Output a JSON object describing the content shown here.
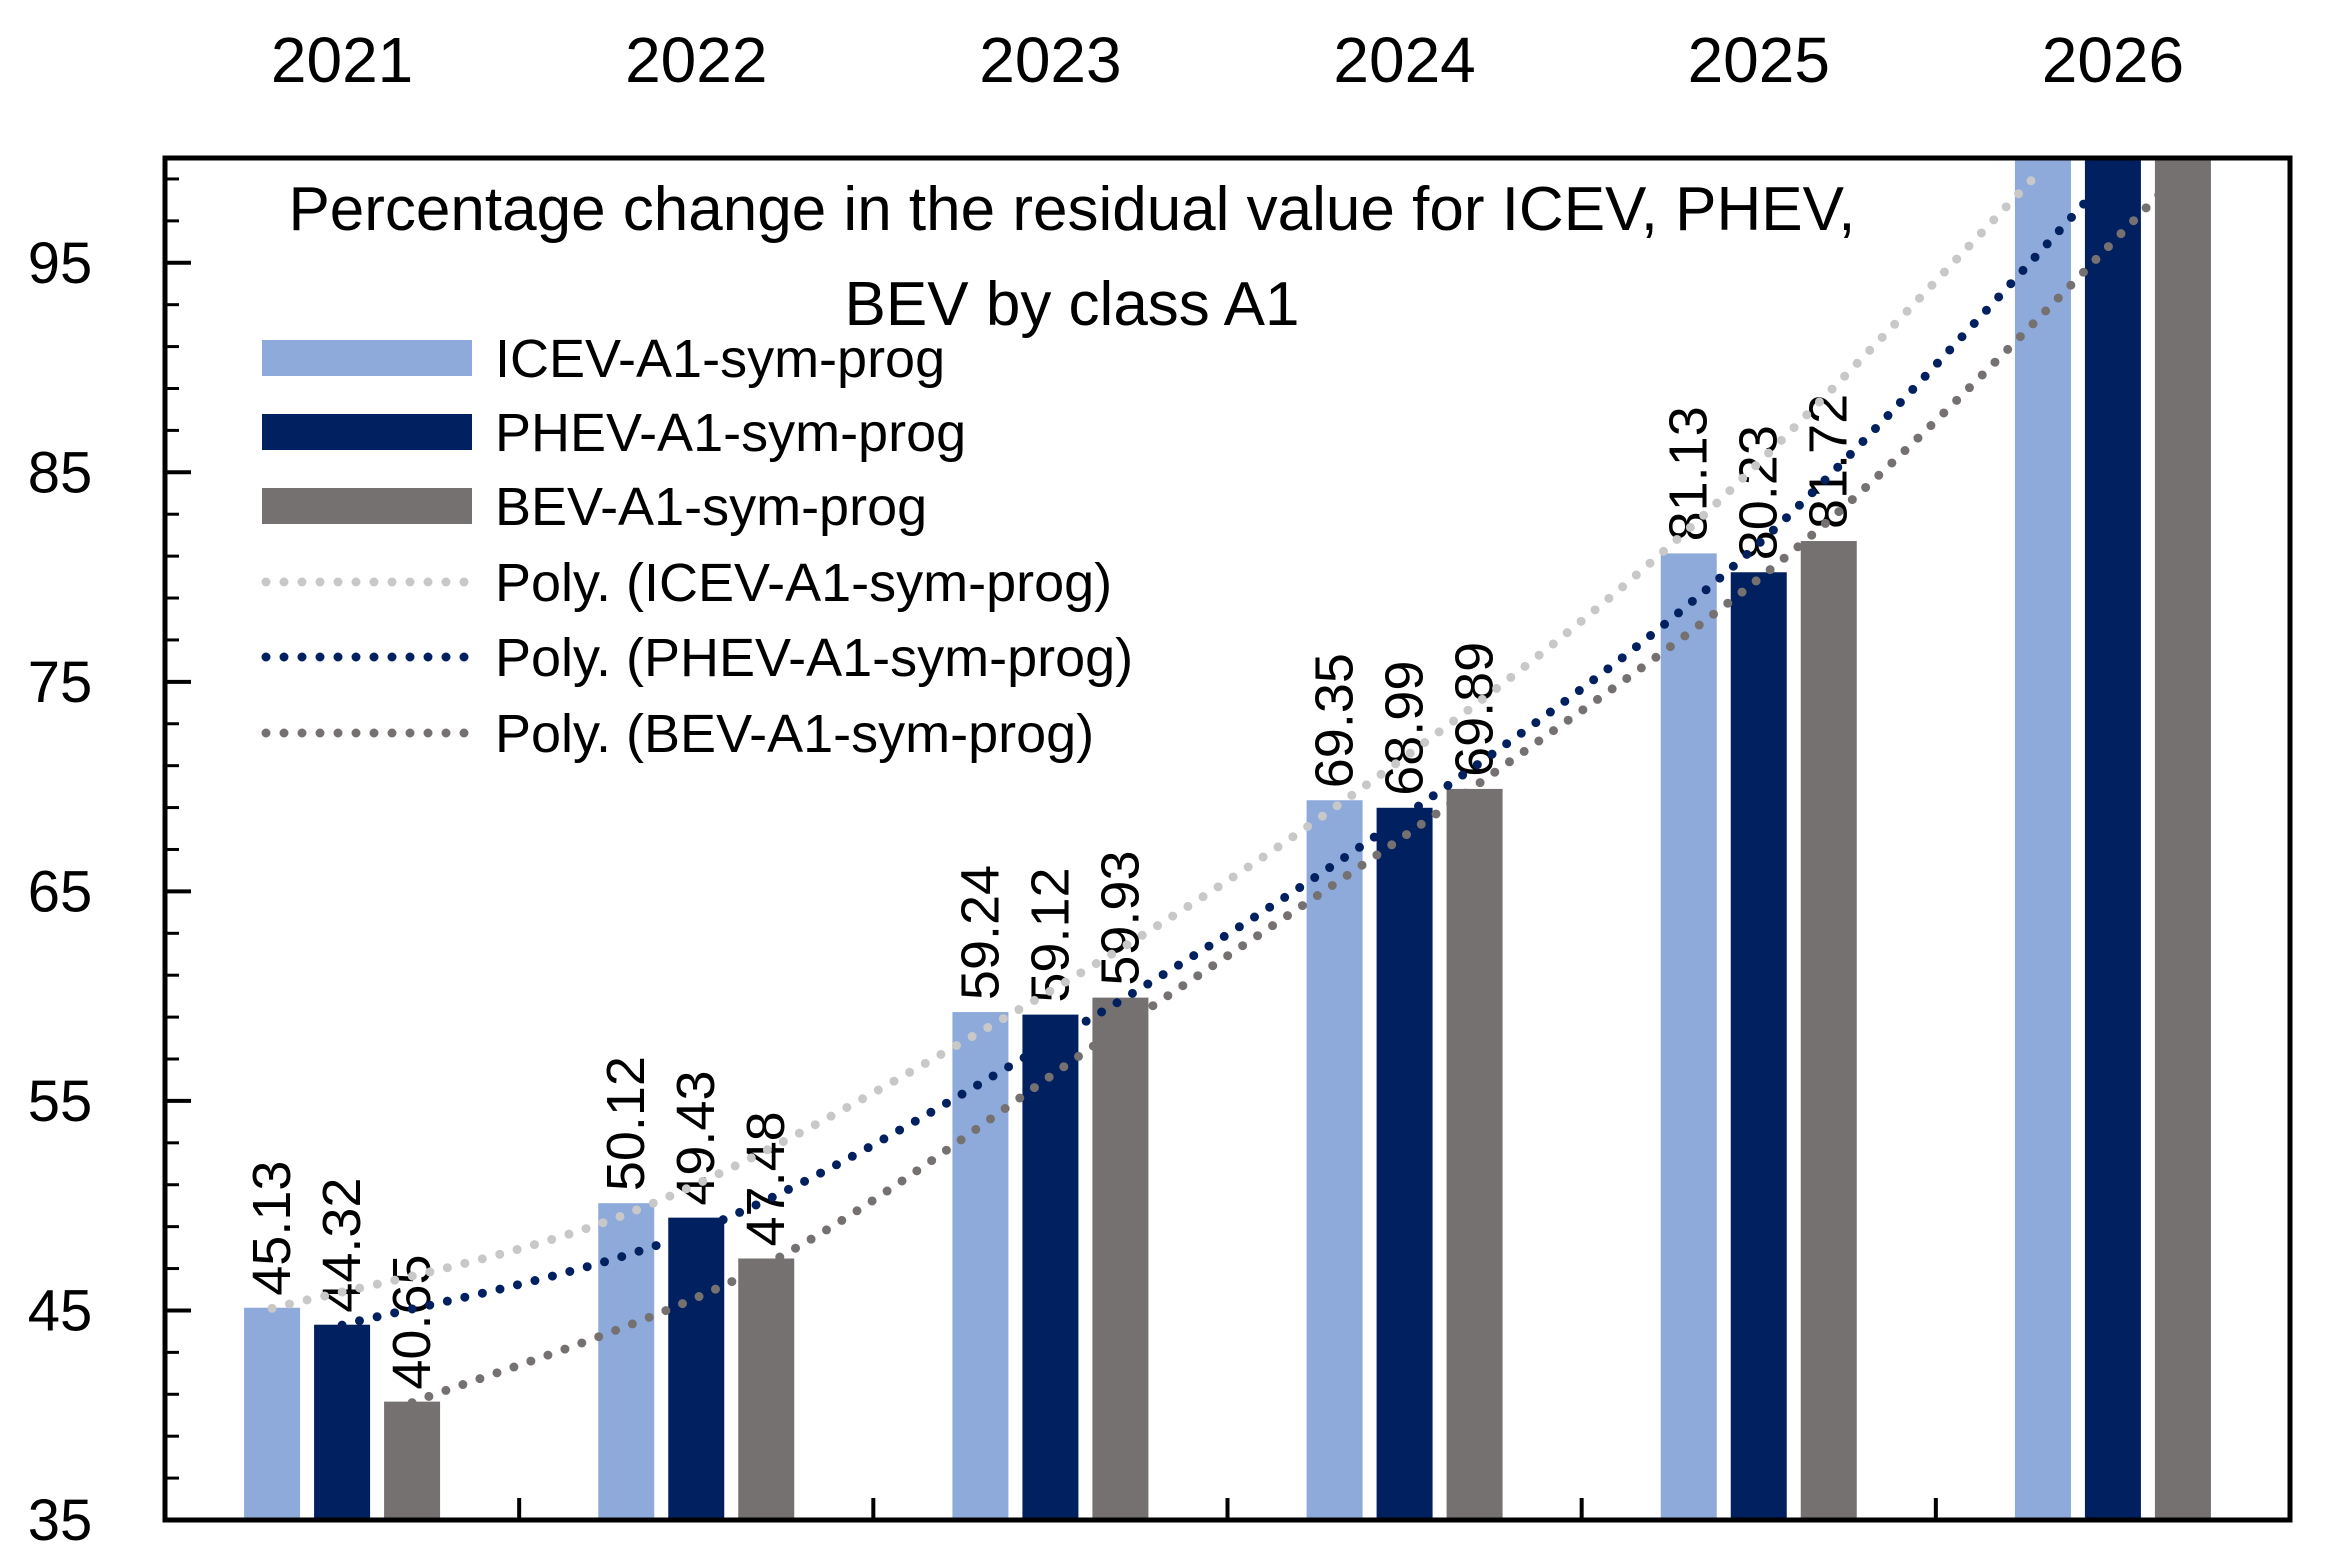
{
  "chart_data": {
    "type": "bar",
    "title_lines": [
      "Percentage change in the residual value for ICEV, PHEV,",
      "BEV by class A1"
    ],
    "categories": [
      "2021",
      "2022",
      "2023",
      "2024",
      "2025",
      "2026"
    ],
    "ylim": [
      35,
      100
    ],
    "yticks": [
      35,
      45,
      55,
      65,
      75,
      85,
      95
    ],
    "ytick_labels": [
      "35",
      "45",
      "55",
      "65",
      "75",
      "85",
      "95"
    ],
    "grid": false,
    "legend_position": "top-left",
    "series": [
      {
        "name": "ICEV-A1-sym-prog",
        "color": "#8eaadb",
        "values": [
          45.13,
          50.12,
          59.24,
          69.35,
          81.13,
          100
        ],
        "labels": [
          "45.13",
          "50.12",
          "59.24",
          "69.35",
          "81.13",
          ""
        ]
      },
      {
        "name": "PHEV-A1-sym-prog",
        "color": "#002060",
        "values": [
          44.32,
          49.43,
          59.12,
          68.99,
          80.23,
          100
        ],
        "labels": [
          "44.32",
          "49.43",
          "59.12",
          "68.99",
          "80.23",
          ""
        ]
      },
      {
        "name": "BEV-A1-sym-prog",
        "color": "#767171",
        "values": [
          40.65,
          47.48,
          59.93,
          69.89,
          81.72,
          100
        ],
        "labels": [
          "40.65",
          "47.48",
          "59.93",
          "69.89",
          "81.72",
          ""
        ]
      }
    ],
    "trendlines": [
      {
        "name": "Poly. (ICEV-A1-sym-prog)",
        "color": "#c8c8c8",
        "type": "polynomial",
        "points": [
          45.1,
          49.6,
          58.3,
          69.0,
          82.3,
          99.5
        ]
      },
      {
        "name": "Poly. (PHEV-A1-sym-prog)",
        "color": "#002060",
        "type": "polynomial",
        "points": [
          44.3,
          48.8,
          57.8,
          68.6,
          81.6,
          99.3
        ]
      },
      {
        "name": "Poly. (BEV-A1-sym-prog)",
        "color": "#767171",
        "type": "polynomial",
        "points": [
          40.6,
          47.2,
          58.5,
          70.0,
          82.7,
          99.4
        ]
      }
    ]
  }
}
